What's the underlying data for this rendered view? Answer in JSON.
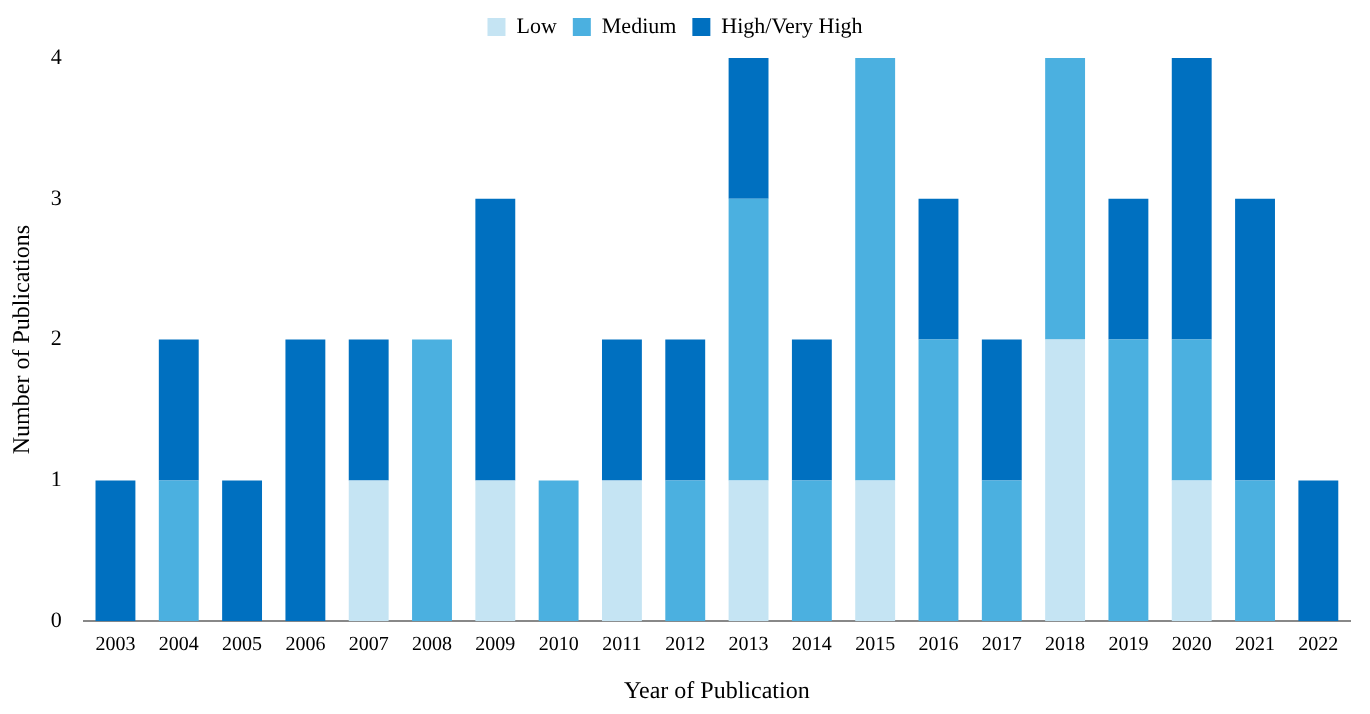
{
  "chart_data": {
    "type": "bar",
    "stacked": true,
    "xlabel": "Year of Publication",
    "ylabel": "Number of Publications",
    "categories": [
      "2003",
      "2004",
      "2005",
      "2006",
      "2007",
      "2008",
      "2009",
      "2010",
      "2011",
      "2012",
      "2013",
      "2014",
      "2015",
      "2016",
      "2017",
      "2018",
      "2019",
      "2020",
      "2021",
      "2022"
    ],
    "series": [
      {
        "name": "Low",
        "color": "#c5e4f3",
        "values": [
          0,
          0,
          0,
          0,
          1,
          0,
          1,
          0,
          1,
          0,
          1,
          0,
          1,
          0,
          0,
          2,
          0,
          1,
          0,
          0
        ]
      },
      {
        "name": "Medium",
        "color": "#4bb0e0",
        "values": [
          0,
          1,
          0,
          0,
          0,
          2,
          0,
          1,
          0,
          1,
          2,
          1,
          3,
          2,
          1,
          2,
          2,
          1,
          1,
          0
        ]
      },
      {
        "name": "High/Very High",
        "color": "#0070c0",
        "values": [
          1,
          1,
          1,
          2,
          1,
          0,
          2,
          0,
          1,
          1,
          1,
          1,
          0,
          1,
          1,
          0,
          1,
          2,
          2,
          1
        ]
      }
    ],
    "ylim": [
      0,
      4
    ],
    "yticks": [
      0,
      1,
      2,
      3,
      4
    ],
    "grid": false,
    "legend": "top"
  }
}
